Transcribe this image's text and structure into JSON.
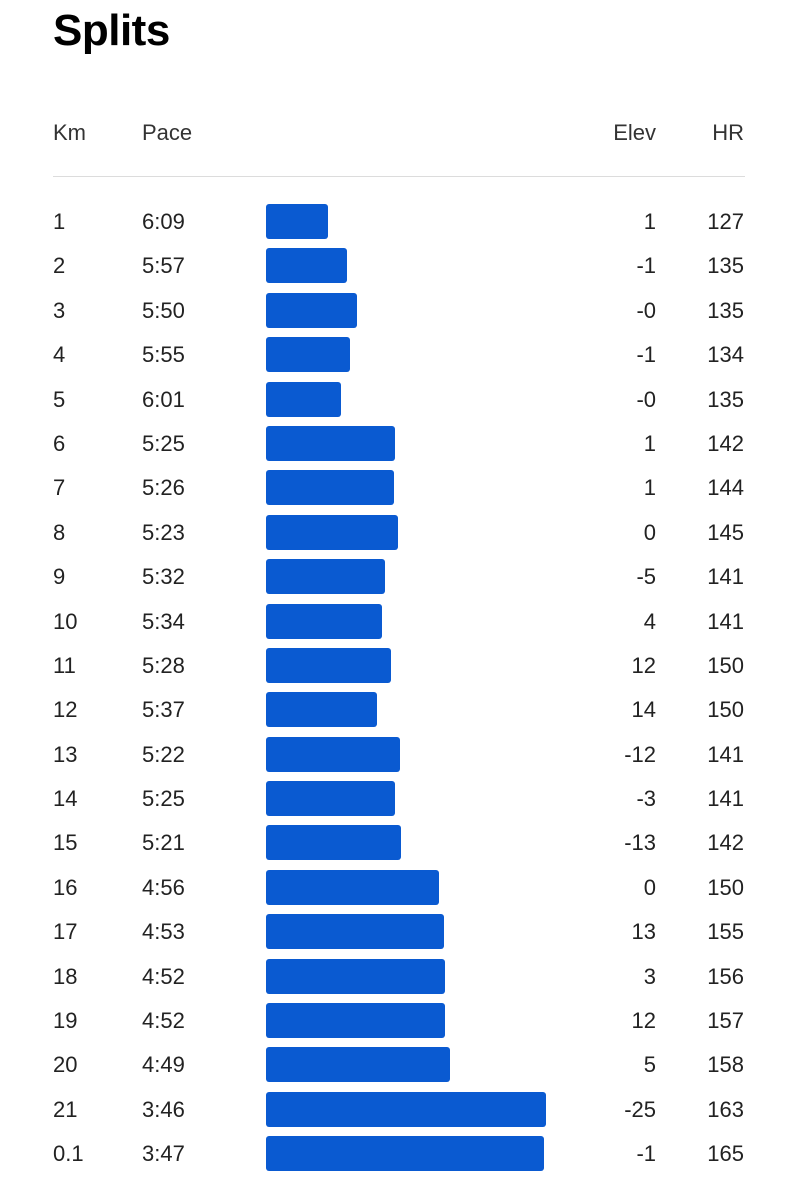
{
  "title": "Splits",
  "headers": {
    "km": "Km",
    "pace": "Pace",
    "elev": "Elev",
    "hr": "HR"
  },
  "colors": {
    "bar": "#0a5ad1"
  },
  "splits": [
    {
      "km": "1",
      "pace": "6:09",
      "pace_sec": 369,
      "elev": "1",
      "hr": "127"
    },
    {
      "km": "2",
      "pace": "5:57",
      "pace_sec": 357,
      "elev": "-1",
      "hr": "135"
    },
    {
      "km": "3",
      "pace": "5:50",
      "pace_sec": 350,
      "elev": "-0",
      "hr": "135"
    },
    {
      "km": "4",
      "pace": "5:55",
      "pace_sec": 355,
      "elev": "-1",
      "hr": "134"
    },
    {
      "km": "5",
      "pace": "6:01",
      "pace_sec": 361,
      "elev": "-0",
      "hr": "135"
    },
    {
      "km": "6",
      "pace": "5:25",
      "pace_sec": 325,
      "elev": "1",
      "hr": "142"
    },
    {
      "km": "7",
      "pace": "5:26",
      "pace_sec": 326,
      "elev": "1",
      "hr": "144"
    },
    {
      "km": "8",
      "pace": "5:23",
      "pace_sec": 323,
      "elev": "0",
      "hr": "145"
    },
    {
      "km": "9",
      "pace": "5:32",
      "pace_sec": 332,
      "elev": "-5",
      "hr": "141"
    },
    {
      "km": "10",
      "pace": "5:34",
      "pace_sec": 334,
      "elev": "4",
      "hr": "141"
    },
    {
      "km": "11",
      "pace": "5:28",
      "pace_sec": 328,
      "elev": "12",
      "hr": "150"
    },
    {
      "km": "12",
      "pace": "5:37",
      "pace_sec": 337,
      "elev": "14",
      "hr": "150"
    },
    {
      "km": "13",
      "pace": "5:22",
      "pace_sec": 322,
      "elev": "-12",
      "hr": "141"
    },
    {
      "km": "14",
      "pace": "5:25",
      "pace_sec": 325,
      "elev": "-3",
      "hr": "141"
    },
    {
      "km": "15",
      "pace": "5:21",
      "pace_sec": 321,
      "elev": "-13",
      "hr": "142"
    },
    {
      "km": "16",
      "pace": "4:56",
      "pace_sec": 296,
      "elev": "0",
      "hr": "150"
    },
    {
      "km": "17",
      "pace": "4:53",
      "pace_sec": 293,
      "elev": "13",
      "hr": "155"
    },
    {
      "km": "18",
      "pace": "4:52",
      "pace_sec": 292,
      "elev": "3",
      "hr": "156"
    },
    {
      "km": "19",
      "pace": "4:52",
      "pace_sec": 292,
      "elev": "12",
      "hr": "157"
    },
    {
      "km": "20",
      "pace": "4:49",
      "pace_sec": 289,
      "elev": "5",
      "hr": "158"
    },
    {
      "km": "21",
      "pace": "3:46",
      "pace_sec": 226,
      "elev": "-25",
      "hr": "163"
    },
    {
      "km": "0.1",
      "pace": "3:47",
      "pace_sec": 227,
      "elev": "-1",
      "hr": "165"
    }
  ]
}
